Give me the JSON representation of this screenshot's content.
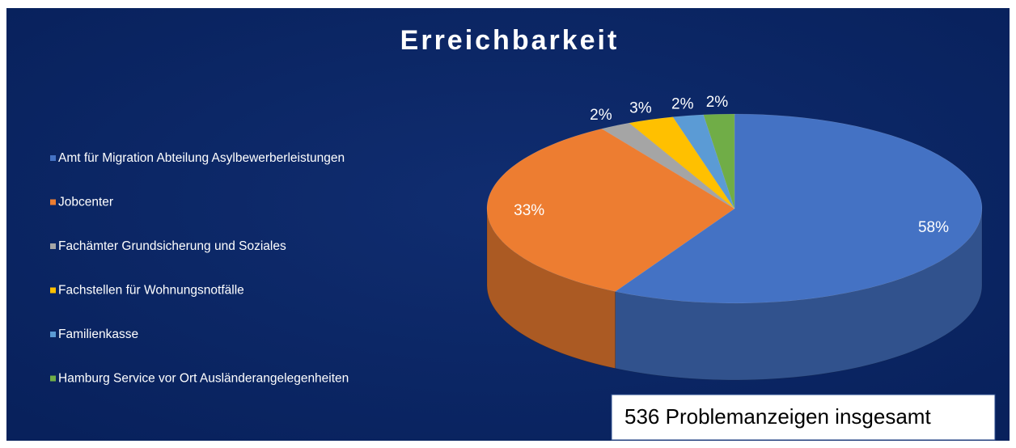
{
  "chart_data": {
    "type": "pie",
    "title": "Erreichbarkeit",
    "categories": [
      "Amt für Migration Abteilung Asylbewerberleistungen",
      "Jobcenter",
      "Fachämter Grundsicherung und Soziales",
      "Fachstellen für Wohnungsnotfälle",
      "Familienkasse",
      "Hamburg Service vor Ort Ausländerangelegenheiten"
    ],
    "values": [
      58,
      33,
      2,
      3,
      2,
      2
    ],
    "value_labels": [
      "58%",
      "33%",
      "2%",
      "3%",
      "2%",
      "2%"
    ],
    "colors": [
      "#4472c4",
      "#ed7d31",
      "#a5a5a5",
      "#ffc000",
      "#5b9bd5",
      "#70ad47"
    ],
    "annotation": "536 Problemanzeigen insgesamt"
  }
}
